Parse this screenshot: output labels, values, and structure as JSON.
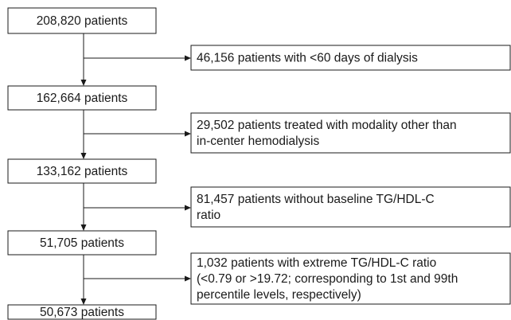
{
  "nodes": [
    {
      "label": "208,820 patients"
    },
    {
      "label": "162,664 patients"
    },
    {
      "label": "133,162 patients"
    },
    {
      "label": "51,705 patients"
    },
    {
      "label": "50,673 patients"
    }
  ],
  "exclusions": [
    {
      "lines": [
        "46,156 patients with <60 days of dialysis"
      ]
    },
    {
      "lines": [
        "29,502 patients treated with modality other than",
        "in-center hemodialysis"
      ]
    },
    {
      "lines": [
        "81,457 patients without baseline TG/HDL-C",
        "ratio"
      ]
    },
    {
      "lines": [
        "1,032 patients with extreme TG/HDL-C ratio",
        "(<0.79 or >19.72; corresponding to 1st and 99th",
        "percentile levels, respectively)"
      ]
    }
  ]
}
